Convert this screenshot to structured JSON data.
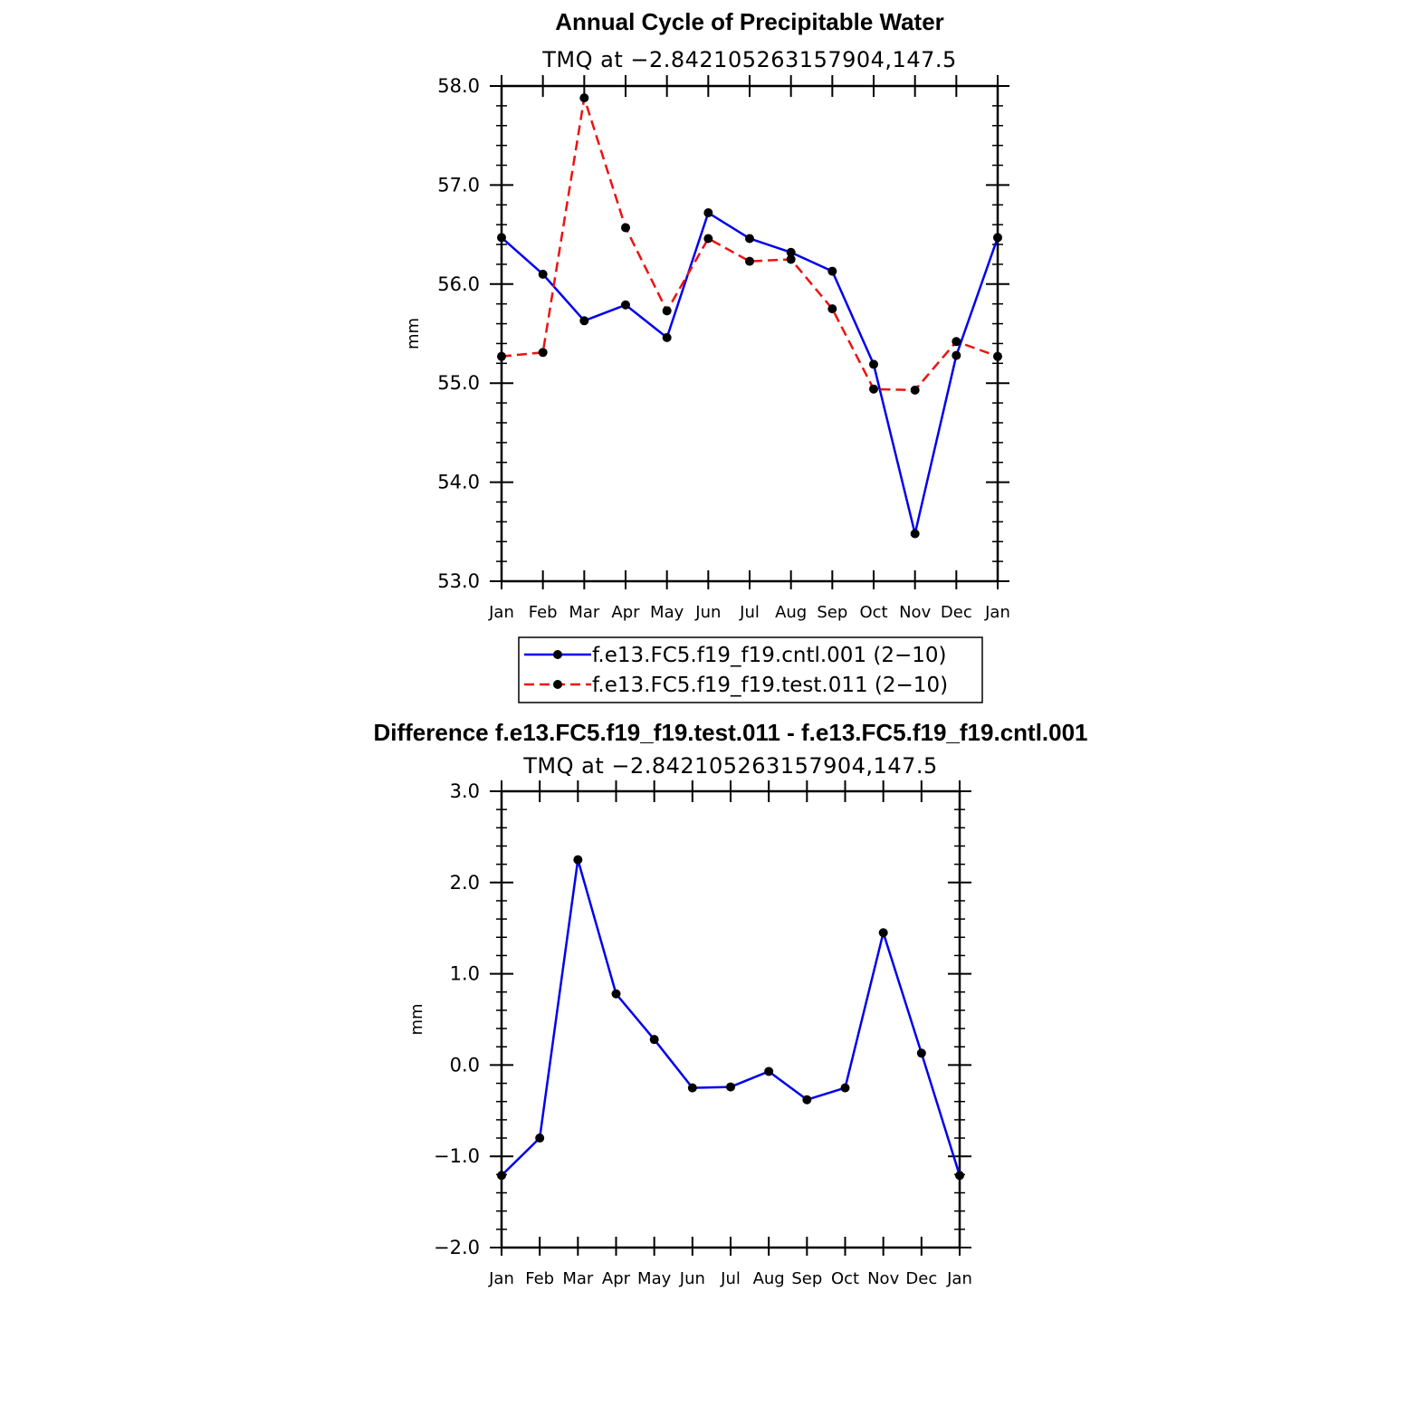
{
  "chart_data": [
    {
      "type": "line",
      "title": "Annual Cycle of Precipitable Water",
      "subtitle": "TMQ at −2.842105263157904,147.5",
      "xlabel": "",
      "ylabel": "mm",
      "categories": [
        "Jan",
        "Feb",
        "Mar",
        "Apr",
        "May",
        "Jun",
        "Jul",
        "Aug",
        "Sep",
        "Oct",
        "Nov",
        "Dec",
        "Jan"
      ],
      "ylim": [
        53.0,
        58.0
      ],
      "yticks": [
        53.0,
        54.0,
        55.0,
        56.0,
        57.0,
        58.0
      ],
      "ytick_labels": [
        "53.0",
        "54.0",
        "55.0",
        "56.0",
        "57.0",
        "58.0"
      ],
      "legend_position": "bottom",
      "series": [
        {
          "name": "f.e13.FC5.f19_f19.cntl.001  (2−10)",
          "color": "#0000ee",
          "style": "solid",
          "values": [
            56.47,
            56.1,
            55.63,
            55.79,
            55.46,
            56.72,
            56.46,
            56.32,
            56.13,
            55.19,
            53.48,
            55.28,
            56.47
          ]
        },
        {
          "name": "f.e13.FC5.f19_f19.test.011  (2−10)",
          "color": "#ee1111",
          "style": "dashed",
          "values": [
            55.27,
            55.31,
            57.88,
            56.57,
            55.73,
            56.46,
            56.23,
            56.25,
            55.75,
            54.94,
            54.93,
            55.42,
            55.27
          ]
        }
      ]
    },
    {
      "type": "line",
      "title": "Difference f.e13.FC5.f19_f19.test.011 - f.e13.FC5.f19_f19.cntl.001",
      "subtitle": "TMQ at −2.842105263157904,147.5",
      "xlabel": "",
      "ylabel": "mm",
      "categories": [
        "Jan",
        "Feb",
        "Mar",
        "Apr",
        "May",
        "Jun",
        "Jul",
        "Aug",
        "Sep",
        "Oct",
        "Nov",
        "Dec",
        "Jan"
      ],
      "ylim": [
        -2.0,
        3.0
      ],
      "yticks": [
        -2.0,
        -1.0,
        0.0,
        1.0,
        2.0,
        3.0
      ],
      "ytick_labels": [
        "−2.0",
        "−1.0",
        "0.0",
        "1.0",
        "2.0",
        "3.0"
      ],
      "series": [
        {
          "name": "difference",
          "color": "#0000ee",
          "style": "solid",
          "values": [
            -1.21,
            -0.8,
            2.25,
            0.78,
            0.28,
            -0.25,
            -0.24,
            -0.07,
            -0.38,
            -0.25,
            1.45,
            0.13,
            -1.21
          ]
        }
      ]
    }
  ]
}
